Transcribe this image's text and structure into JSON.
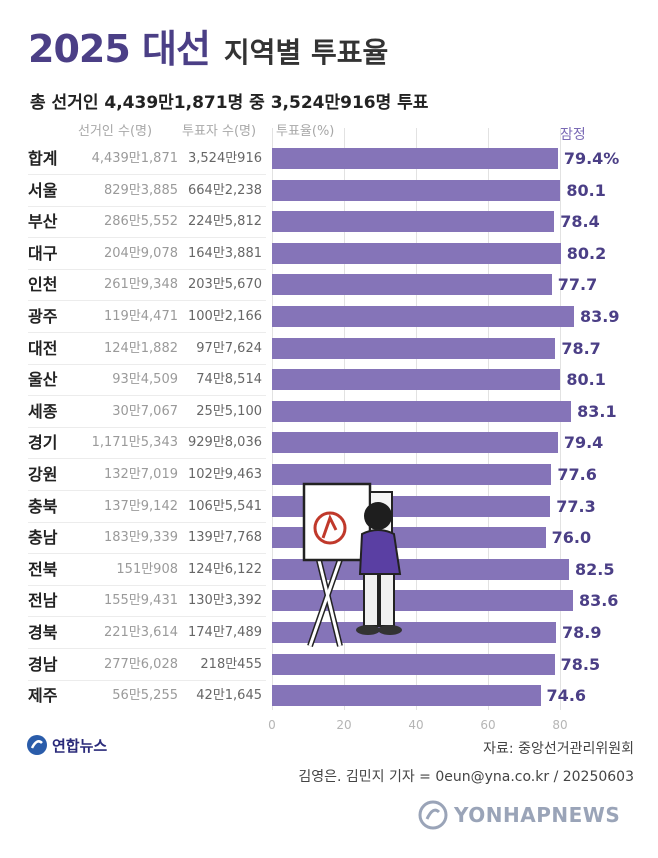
{
  "header": {
    "title_main": "2025 대선",
    "title_sub": "지역별 투표율",
    "summary": "총 선거인 4,439만1,871명 중 3,524만916명 투표"
  },
  "columns": {
    "voters": "선거인 수(명)",
    "voted": "투표자 수(명)",
    "turnout": "투표율(%)",
    "preliminary": "잠정"
  },
  "chart_data": {
    "type": "bar",
    "orientation": "horizontal",
    "title": "2025 대선 지역별 투표율",
    "categories": [
      "합계",
      "서울",
      "부산",
      "대구",
      "인천",
      "광주",
      "대전",
      "울산",
      "세종",
      "경기",
      "강원",
      "충북",
      "충남",
      "전북",
      "전남",
      "경북",
      "경남",
      "제주"
    ],
    "values": [
      79.4,
      80.1,
      78.4,
      80.2,
      77.7,
      83.9,
      78.7,
      80.1,
      83.1,
      79.4,
      77.6,
      77.3,
      76.0,
      82.5,
      83.6,
      78.9,
      78.5,
      74.6
    ],
    "value_labels": [
      "79.4%",
      "80.1",
      "78.4",
      "80.2",
      "77.7",
      "83.9",
      "78.7",
      "80.1",
      "83.1",
      "79.4",
      "77.6",
      "77.3",
      "76.0",
      "82.5",
      "83.6",
      "78.9",
      "78.5",
      "74.6"
    ],
    "xlim": [
      0,
      85
    ],
    "xticks": [
      0,
      20,
      40,
      60,
      80
    ],
    "xtick_labels": [
      "0",
      "20",
      "40",
      "60",
      "80"
    ],
    "xlabel": "투표율(%)",
    "color": "#8574b8"
  },
  "table": {
    "voters": [
      "4,439만1,871",
      "829만3,885",
      "286만5,552",
      "204만9,078",
      "261만9,348",
      "119만4,471",
      "124만1,882",
      "93만4,509",
      "30만7,067",
      "1,171만5,343",
      "132만7,019",
      "137만9,142",
      "183만9,339",
      "151만908",
      "155만9,431",
      "221만3,614",
      "277만6,028",
      "56만5,255"
    ],
    "voted": [
      "3,524만916",
      "664만2,238",
      "224만5,812",
      "164만3,881",
      "203만5,670",
      "100만2,166",
      "97만7,624",
      "74만8,514",
      "25만5,100",
      "929만8,036",
      "102만9,463",
      "106만5,541",
      "139만7,768",
      "124만6,122",
      "130만3,392",
      "174만7,489",
      "218만455",
      "42만1,645"
    ]
  },
  "footer": {
    "logo_text": "연합뉴스",
    "source": "자료: 중앙선거관리위원회",
    "credit": "김영은. 김민지 기자 = 0eun@yna.co.kr / 20250603",
    "watermark": "YONHAPNEWS"
  },
  "colors": {
    "accent": "#4b3f86",
    "bar": "#8574b8"
  }
}
